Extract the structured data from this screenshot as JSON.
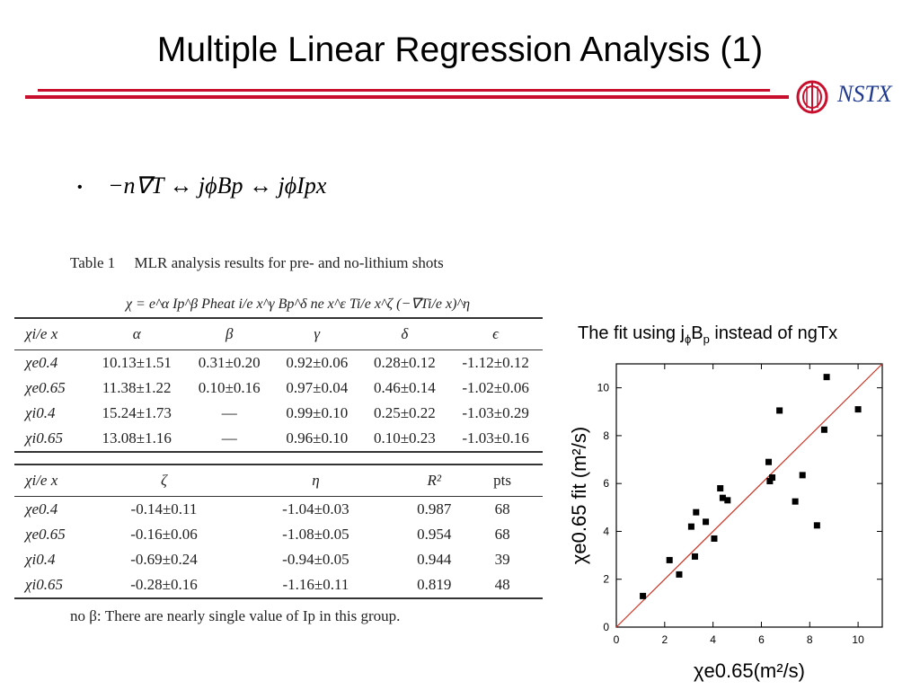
{
  "title": "Multiple Linear Regression Analysis (1)",
  "logo": {
    "text": "NSTX",
    "icon": "nstx-logo-icon"
  },
  "bullet_formula": "−n∇T ↔ jϕBp ↔ jϕIpx",
  "table": {
    "caption": "Table 1     MLR analysis results for pre- and no-lithium shots",
    "formula": "χ = e^α Ip^β Pheat i/e x^γ Bp^δ ne x^ε Ti/e x^ζ (−∇Ti/e x)^η",
    "header1": [
      "χi/e x",
      "α",
      "β",
      "γ",
      "δ",
      "ϵ"
    ],
    "rows1": [
      [
        "χe0.4",
        "10.13±1.51",
        "0.31±0.20",
        "0.92±0.06",
        "0.28±0.12",
        "-1.12±0.12"
      ],
      [
        "χe0.65",
        "11.38±1.22",
        "0.10±0.16",
        "0.97±0.04",
        "0.46±0.14",
        "-1.02±0.06"
      ],
      [
        "χi0.4",
        "15.24±1.73",
        "—",
        "0.99±0.10",
        "0.25±0.22",
        "-1.03±0.29"
      ],
      [
        "χi0.65",
        "13.08±1.16",
        "—",
        "0.96±0.10",
        "0.10±0.23",
        "-1.03±0.16"
      ]
    ],
    "header2": [
      "χi/e x",
      "ζ",
      "η",
      "R²",
      "pts",
      ""
    ],
    "rows2": [
      [
        "χe0.4",
        "-0.14±0.11",
        "-1.04±0.03",
        "0.987",
        "68",
        ""
      ],
      [
        "χe0.65",
        "-0.16±0.06",
        "-1.08±0.05",
        "0.954",
        "68",
        ""
      ],
      [
        "χi0.4",
        "-0.69±0.24",
        "-0.94±0.05",
        "0.944",
        "39",
        ""
      ],
      [
        "χi0.65",
        "-0.28±0.16",
        "-1.16±0.11",
        "0.819",
        "48",
        ""
      ]
    ],
    "note": "no β: There are nearly single value of Ip in this group."
  },
  "chart_title": {
    "pre": "The fit using j",
    "sub1": "ϕ",
    "mid": "B",
    "sub2": "p",
    "post": " instead of ngTx"
  },
  "chart_data": {
    "type": "scatter",
    "xlabel": "χe0.65(m²/s)",
    "ylabel": "χe0.65 fit (m²/s)",
    "xlim": [
      0,
      11
    ],
    "ylim": [
      0,
      11
    ],
    "xticks": [
      0,
      2,
      4,
      6,
      8,
      10
    ],
    "yticks": [
      0,
      2,
      4,
      6,
      8,
      10
    ],
    "grid": false,
    "line": {
      "type": "y=x",
      "color": "#d03020"
    },
    "marker_color": "#000000",
    "points": [
      [
        1.1,
        1.3
      ],
      [
        2.2,
        2.8
      ],
      [
        2.6,
        2.2
      ],
      [
        3.1,
        4.2
      ],
      [
        3.25,
        2.95
      ],
      [
        3.3,
        4.8
      ],
      [
        3.7,
        4.4
      ],
      [
        4.05,
        3.7
      ],
      [
        4.3,
        5.8
      ],
      [
        4.4,
        5.4
      ],
      [
        4.6,
        5.3
      ],
      [
        6.3,
        6.9
      ],
      [
        6.35,
        6.1
      ],
      [
        6.45,
        6.25
      ],
      [
        6.75,
        9.05
      ],
      [
        7.4,
        5.25
      ],
      [
        7.7,
        6.35
      ],
      [
        8.3,
        4.25
      ],
      [
        8.6,
        8.25
      ],
      [
        8.7,
        10.45
      ],
      [
        10.0,
        9.1
      ]
    ]
  }
}
